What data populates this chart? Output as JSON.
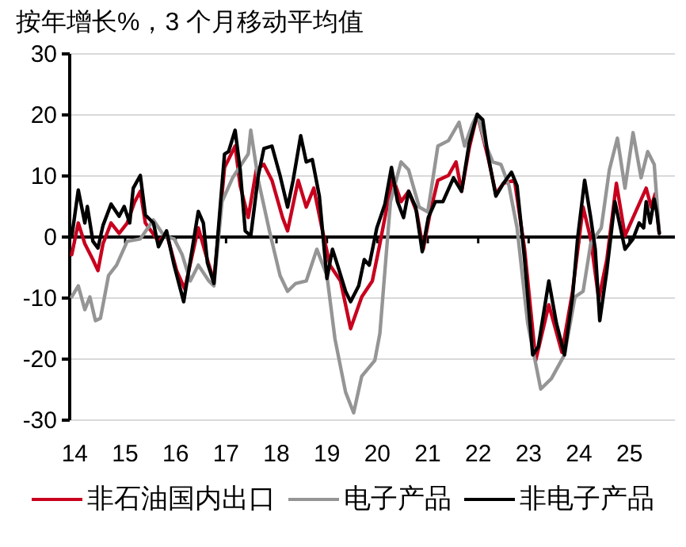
{
  "chart_data": {
    "type": "line",
    "title": "按年增长%，3 个月移动平均值",
    "xlim": [
      13.9,
      25.9
    ],
    "xticks": [
      14,
      15,
      16,
      17,
      18,
      19,
      20,
      21,
      22,
      23,
      24,
      25
    ],
    "ylim": [
      -30,
      30
    ],
    "yticks": [
      -30,
      -20,
      -10,
      0,
      10,
      20,
      30
    ],
    "grid": "y",
    "legend": "bottom",
    "line_style": "solid",
    "series": [
      {
        "name": "非石油国内出口",
        "color": "#c8001e",
        "x": [
          13.94,
          14.07,
          14.2,
          14.36,
          14.46,
          14.56,
          14.72,
          14.88,
          15.04,
          15.19,
          15.3,
          15.4,
          15.66,
          15.82,
          16.02,
          16.18,
          16.45,
          16.6,
          16.76,
          16.97,
          17.18,
          17.28,
          17.44,
          17.6,
          17.75,
          17.91,
          18.12,
          18.22,
          18.43,
          18.59,
          18.74,
          18.9,
          19.06,
          19.27,
          19.47,
          19.69,
          19.9,
          20.05,
          20.21,
          20.31,
          20.47,
          20.62,
          20.78,
          20.91,
          21.05,
          21.2,
          21.41,
          21.56,
          21.67,
          21.82,
          21.98,
          22.19,
          22.35,
          22.5,
          22.72,
          22.92,
          23.14,
          23.4,
          23.66,
          23.87,
          24.08,
          24.23,
          24.39,
          24.55,
          24.74,
          24.91,
          25.12,
          25.33,
          25.43,
          25.51,
          25.59
        ],
        "values": [
          -2.9,
          2.3,
          -1.1,
          -3.7,
          -5.5,
          -1.1,
          2.3,
          0.6,
          2.3,
          5.8,
          7.5,
          2.3,
          -0.7,
          0.6,
          -5.5,
          -8.5,
          1.5,
          -2.9,
          -7.2,
          11.4,
          14.9,
          8.4,
          3.2,
          11,
          11.9,
          9.3,
          3.2,
          1,
          9.3,
          4.9,
          8,
          1.5,
          -4.6,
          -7.2,
          -15,
          -9.8,
          -7.2,
          -1.1,
          5.8,
          9.7,
          5.8,
          7.5,
          4.1,
          -2,
          4.1,
          9.3,
          10.1,
          12.3,
          7.5,
          14.5,
          20.1,
          13.2,
          7.1,
          8.8,
          9.3,
          -2,
          -20.2,
          -11.1,
          -18.9,
          -8.9,
          4.9,
          -0.3,
          -10.2,
          -3.7,
          8.8,
          0.2,
          4.1,
          8,
          4.9,
          7.1,
          0.6
        ]
      },
      {
        "name": "电子产品",
        "color": "#959595",
        "x": [
          13.94,
          14.07,
          14.2,
          14.3,
          14.41,
          14.51,
          14.67,
          14.83,
          15.04,
          15.3,
          15.56,
          15.77,
          15.97,
          16.13,
          16.29,
          16.45,
          16.66,
          16.76,
          16.92,
          17.13,
          17.44,
          17.49,
          17.64,
          17.86,
          18.07,
          18.22,
          18.38,
          18.59,
          18.8,
          19.0,
          19.16,
          19.37,
          19.53,
          19.69,
          19.95,
          20.05,
          20.15,
          20.26,
          20.47,
          20.62,
          20.83,
          21.0,
          21.2,
          21.41,
          21.62,
          21.73,
          21.88,
          21.98,
          22.14,
          22.29,
          22.45,
          22.61,
          22.77,
          22.98,
          23.24,
          23.45,
          23.71,
          23.92,
          24.08,
          24.23,
          24.44,
          24.6,
          24.76,
          24.91,
          25.07,
          25.23,
          25.36,
          25.49,
          25.59
        ],
        "values": [
          -9.8,
          -8,
          -11.9,
          -9.8,
          -13.7,
          -13.3,
          -6.3,
          -4.6,
          -0.7,
          -0.3,
          2.8,
          0.2,
          -0.3,
          -2.9,
          -7.2,
          -4.6,
          -7.2,
          -8,
          5.8,
          9.7,
          13.6,
          17.5,
          9.3,
          1,
          -6.3,
          -8.9,
          -7.6,
          -7.2,
          -2,
          -6.3,
          -16.7,
          -25.4,
          -28.8,
          -22.8,
          -20.2,
          -15.8,
          -5.5,
          5.8,
          12.3,
          11,
          4.9,
          4.1,
          14.9,
          15.8,
          18.8,
          14.9,
          18.4,
          20.1,
          15.3,
          12.3,
          11.9,
          8.4,
          1.5,
          -14.1,
          -24.9,
          -23.2,
          -19.3,
          -9.8,
          -8.9,
          -1.1,
          1.5,
          11,
          16.2,
          8,
          17.1,
          9.7,
          14,
          11.9,
          0.6
        ]
      },
      {
        "name": "非电子产品",
        "color": "#000000",
        "x": [
          13.94,
          14.07,
          14.2,
          14.25,
          14.36,
          14.46,
          14.56,
          14.72,
          14.88,
          14.98,
          15.09,
          15.16,
          15.3,
          15.4,
          15.56,
          15.66,
          15.82,
          15.97,
          16.16,
          16.45,
          16.55,
          16.63,
          16.76,
          16.97,
          17.05,
          17.18,
          17.28,
          17.38,
          17.49,
          17.64,
          17.75,
          17.91,
          18.07,
          18.22,
          18.33,
          18.48,
          18.59,
          18.71,
          18.85,
          19.0,
          19.11,
          19.21,
          19.37,
          19.47,
          19.63,
          19.74,
          19.84,
          19.99,
          20.15,
          20.28,
          20.4,
          20.52,
          20.62,
          20.76,
          20.89,
          21.01,
          21.15,
          21.3,
          21.51,
          21.67,
          21.82,
          21.98,
          22.09,
          22.19,
          22.35,
          22.5,
          22.66,
          22.77,
          22.92,
          23.08,
          23.19,
          23.4,
          23.55,
          23.71,
          23.87,
          23.97,
          24.11,
          24.23,
          24.32,
          24.41,
          24.55,
          24.71,
          24.91,
          25.07,
          25.19,
          25.28,
          25.33,
          25.41,
          25.49,
          25.54,
          25.59
        ],
        "values": [
          0,
          7.7,
          2.3,
          5,
          -0.7,
          -1.8,
          1.9,
          5.4,
          3.4,
          5,
          2.3,
          8,
          10.1,
          3.6,
          2.3,
          -1.6,
          1,
          -4.6,
          -10.6,
          4.2,
          2.3,
          -4.2,
          -7.6,
          13.6,
          14,
          17.5,
          11,
          1,
          0.2,
          10.1,
          14.5,
          14.9,
          10.1,
          4.9,
          9.3,
          16.6,
          12.3,
          12.7,
          6.7,
          -6.8,
          -2,
          -4.6,
          -8.9,
          -10.6,
          -8,
          -3.7,
          -4.6,
          1.5,
          5.4,
          11.4,
          5.8,
          3.2,
          7.5,
          4.9,
          -2.4,
          3.2,
          5.8,
          5.8,
          9.7,
          7.5,
          15.3,
          20.1,
          19.2,
          13.6,
          6.7,
          8.8,
          10.6,
          8.4,
          -3.7,
          -19.3,
          -18,
          -7.2,
          -14.1,
          -19.3,
          -9.8,
          -0.3,
          9.3,
          3.2,
          -2,
          -13.7,
          -5.5,
          5.8,
          -2,
          -0.3,
          2.3,
          1.5,
          5.8,
          2.3,
          6.2,
          4.1,
          0.6
        ]
      }
    ]
  }
}
